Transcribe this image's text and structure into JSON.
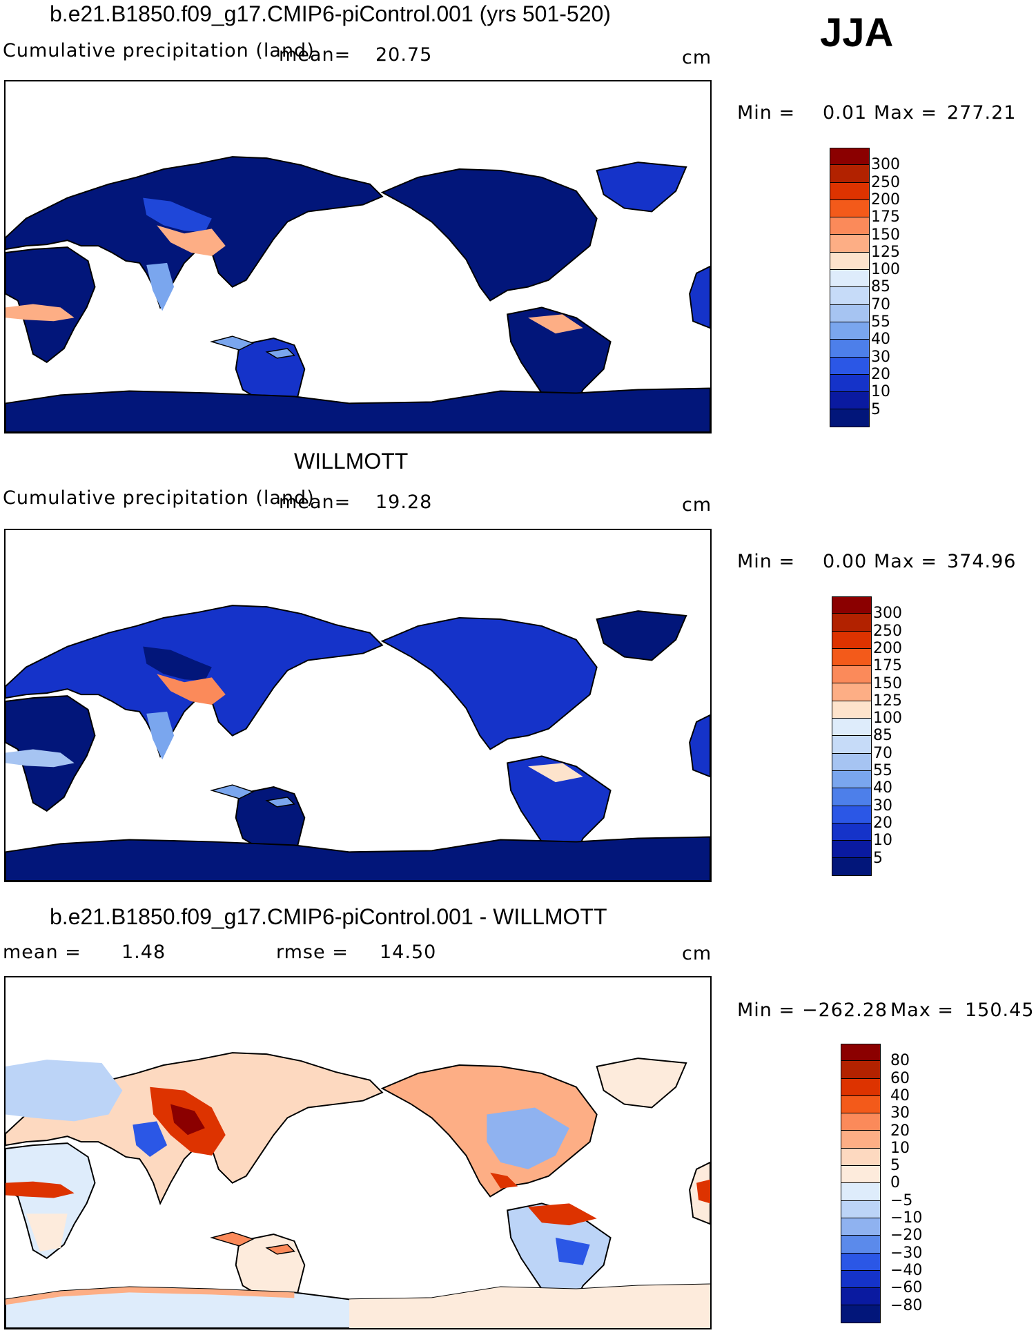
{
  "season": "JJA",
  "panels": [
    {
      "id": "model",
      "title": "b.e21.B1850.f09_g17.CMIP6-piControl.001 (yrs 501-520)",
      "variable": "Cumulative precipitation (land)",
      "mean_label": "mean=",
      "mean_value": "20.75",
      "units": "cm",
      "min_label": "Min =",
      "min_value": "0.01",
      "max_label": "Max =",
      "max_value": "277.21",
      "levels": [
        "300",
        "250",
        "200",
        "175",
        "150",
        "125",
        "100",
        "85",
        "70",
        "55",
        "40",
        "30",
        "20",
        "10",
        "5"
      ],
      "colors": [
        "#8b0000",
        "#b22200",
        "#dd3300",
        "#f35a1a",
        "#fb8a5a",
        "#fdae85",
        "#fde3cc",
        "#deecfb",
        "#c6dbf8",
        "#a6c4f2",
        "#7aa6ee",
        "#4d7fea",
        "#2b57e6",
        "#1533c9",
        "#0a1aa0",
        "#02167a"
      ]
    },
    {
      "id": "obs",
      "title": "WILLMOTT",
      "variable": "Cumulative precipitation (land)",
      "mean_label": "mean=",
      "mean_value": "19.28",
      "units": "cm",
      "min_label": "Min =",
      "min_value": "0.00",
      "max_label": "Max =",
      "max_value": "374.96",
      "levels": [
        "300",
        "250",
        "200",
        "175",
        "150",
        "125",
        "100",
        "85",
        "70",
        "55",
        "40",
        "30",
        "20",
        "10",
        "5"
      ],
      "colors": [
        "#8b0000",
        "#b22200",
        "#dd3300",
        "#f35a1a",
        "#fb8a5a",
        "#fdae85",
        "#fde3cc",
        "#deecfb",
        "#c6dbf8",
        "#a6c4f2",
        "#7aa6ee",
        "#4d7fea",
        "#2b57e6",
        "#1533c9",
        "#0a1aa0",
        "#02167a"
      ]
    },
    {
      "id": "diff",
      "title": "b.e21.B1850.f09_g17.CMIP6-piControl.001 - WILLMOTT",
      "mean_label": "mean =",
      "mean_value": "1.48",
      "rmse_label": "rmse =",
      "rmse_value": "14.50",
      "units": "cm",
      "min_label": "Min =",
      "min_value": "−262.28",
      "max_label": "Max =",
      "max_value": "150.45",
      "levels": [
        "80",
        "60",
        "40",
        "30",
        "20",
        "10",
        "5",
        "0",
        "−5",
        "−10",
        "−20",
        "−30",
        "−40",
        "−60",
        "−80"
      ],
      "colors": [
        "#8b0000",
        "#b22200",
        "#dd3300",
        "#f35a1a",
        "#fb8a5a",
        "#fdae85",
        "#fdd9c0",
        "#fdebdc",
        "#deecfb",
        "#bcd4f7",
        "#8fb2f0",
        "#5b8aeb",
        "#2b57e6",
        "#1533c9",
        "#0a1aa0",
        "#02167a"
      ]
    }
  ]
}
